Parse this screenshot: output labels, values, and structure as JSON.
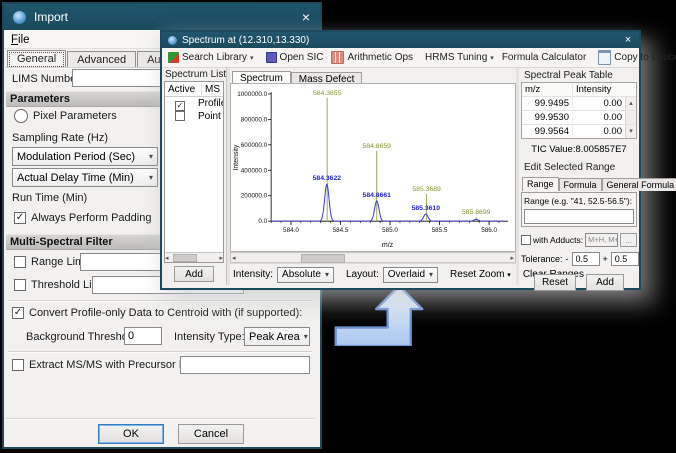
{
  "import_window": {
    "title": "Import",
    "close_icon": "×",
    "menu_file": "File",
    "tabs": [
      "General",
      "Advanced",
      "Automated Actions"
    ],
    "lims_label": "LIMS Number:",
    "lims_value": "",
    "section_parameters": "Parameters",
    "radio_pixel_label": "Pixel Parameters",
    "sampling_rate_label": "Sampling Rate (Hz)",
    "modulation_dropdown": "Modulation Period (Sec)",
    "delay_dropdown": "Actual Delay Time (Min)",
    "run_time_label": "Run Time (Min)",
    "padding_checkbox": {
      "label": "Always Perform Padding",
      "checked": true
    },
    "section_multi_spectral": "Multi-Spectral Filter",
    "range_limit_checkbox": {
      "label": "Range Limit",
      "checked": false
    },
    "range_limit_value": "",
    "threshold_limit_checkbox": {
      "label": "Threshold Limit",
      "checked": false
    },
    "threshold_limit_value": "",
    "convert_checkbox": {
      "label": "Convert Profile-only Data to Centroid with (if supported):",
      "checked": true
    },
    "background_threshold_label": "Background Threshold:",
    "background_threshold_value": "0",
    "intensity_type_label": "Intensity Type:",
    "intensity_type_value": "Peak Area",
    "extract_checkbox": {
      "label": "Extract MS/MS with Precursor Ions:",
      "checked": false
    },
    "extract_value": "",
    "ok_button": "OK",
    "cancel_button": "Cancel"
  },
  "spectrum_window": {
    "title": "Spectrum at (12.310,13.330)",
    "close_icon": "×",
    "toolbar": {
      "search_library": "Search Library",
      "open_sic": "Open SIC",
      "arithmetic_ops": "Arithmetic Ops",
      "hrms_tuning": "HRMS Tuning",
      "formula_calculator": "Formula Calculator",
      "copy_to_clipboard": "Copy to Clipboard"
    },
    "spectrum_list": {
      "header": "Spectrum List",
      "col_active": "Active",
      "col_ms": "MS",
      "rows": [
        {
          "ms": "Profile",
          "active": true
        },
        {
          "ms": "Point",
          "active": false
        }
      ],
      "add_button": "Add"
    },
    "tab_spectrum": "Spectrum",
    "tab_mass_defect": "Mass Defect",
    "controls": {
      "intensity_label": "Intensity:",
      "intensity_value": "Absolute",
      "layout_label": "Layout:",
      "layout_value": "Overlaid",
      "reset_zoom": "Reset Zoom",
      "clear_ranges": "Clear Ranges"
    },
    "peak_table": {
      "header": "Spectral Peak Table",
      "col_mz": "m/z",
      "col_intensity": "Intensity",
      "rows": [
        [
          "99.9495",
          "0.00"
        ],
        [
          "99.9530",
          "0.00"
        ],
        [
          "99.9564",
          "0.00"
        ]
      ],
      "tic_value": "TIC Value:8.005857E7"
    },
    "edit_range": {
      "header": "Edit Selected Range",
      "tabs": [
        "Range",
        "Formula",
        "General Formula"
      ],
      "range_label": "Range (e.g. \"41, 52.5-56.5\"):",
      "range_value": "",
      "adducts_checkbox": {
        "label": "with Adducts:",
        "checked": false
      },
      "adducts_value": "M+H, M+N",
      "browse_button": "...",
      "tolerance_label": "Tolerance:",
      "tolerance_minus_sign": "-",
      "tolerance_minus": "0.5",
      "tolerance_plus_sign": "+",
      "tolerance_plus": "0.5",
      "reset_button": "Reset",
      "add_button": "Add"
    }
  },
  "chart_data": {
    "type": "line",
    "title": "",
    "xlabel": "m/z",
    "ylabel": "Intensity",
    "xlim": [
      583.8,
      586.15
    ],
    "ylim": [
      0,
      1000000
    ],
    "x_ticks": [
      584.0,
      584.5,
      585.0,
      585.5,
      586.0
    ],
    "y_ticks": [
      0,
      200000,
      400000,
      600000,
      800000,
      1000000
    ],
    "grid": false,
    "legend": "none",
    "series": [
      {
        "name": "Point (stick spectrum)",
        "style": "stick",
        "color": "#9aad52",
        "label_color": "#7f962c",
        "peaks": [
          [
            584.3655,
            970000
          ],
          [
            584.8659,
            552000
          ],
          [
            585.3689,
            215000
          ],
          [
            585.8699,
            34000
          ]
        ],
        "labels": [
          "584.3655",
          "584.8659",
          "585.3689",
          "585.8699"
        ]
      },
      {
        "name": "Profile",
        "style": "profile",
        "color": "#3b3bc6",
        "label_color": "#2424cc",
        "peaks": [
          [
            584.3622,
            292000
          ],
          [
            584.8661,
            160000
          ],
          [
            585.361,
            56000
          ],
          [
            585.869,
            14000
          ]
        ],
        "labels": [
          "584.3622",
          "584.8661",
          "585.3610",
          ""
        ]
      }
    ]
  }
}
